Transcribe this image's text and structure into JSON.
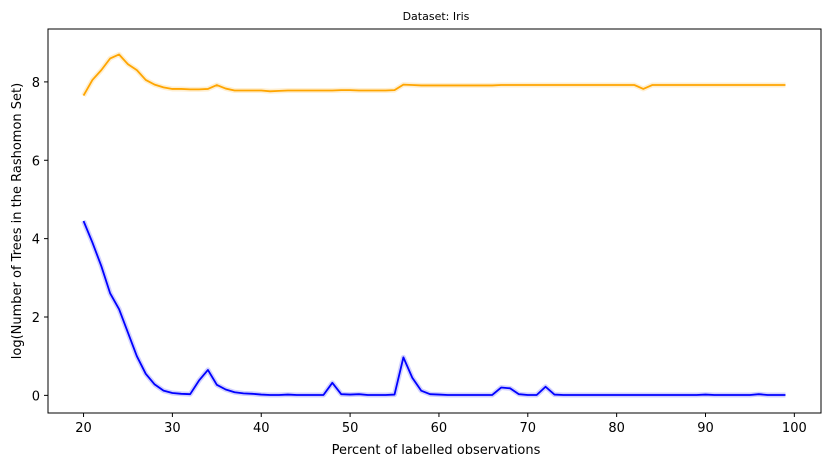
{
  "chart_data": {
    "type": "line",
    "title": "Dataset: Iris",
    "xlabel": "Percent of labelled observations",
    "ylabel": "log(Number of Trees in the Rashomon Set)",
    "xlim": [
      16,
      103
    ],
    "ylim": [
      -0.45,
      9.35
    ],
    "xticks": [
      20,
      30,
      40,
      50,
      60,
      70,
      80,
      90,
      100
    ],
    "yticks": [
      0,
      2,
      4,
      6,
      8
    ],
    "grid": false,
    "legend": "none",
    "series": [
      {
        "color": "#ffa500",
        "x": [
          20,
          21,
          22,
          23,
          24,
          25,
          26,
          27,
          28,
          29,
          30,
          31,
          32,
          33,
          34,
          35,
          36,
          37,
          38,
          39,
          40,
          41,
          42,
          43,
          44,
          45,
          46,
          47,
          48,
          49,
          50,
          51,
          52,
          53,
          54,
          55,
          56,
          57,
          58,
          59,
          60,
          61,
          62,
          63,
          64,
          65,
          66,
          67,
          68,
          69,
          70,
          71,
          72,
          73,
          74,
          75,
          76,
          77,
          78,
          79,
          80,
          81,
          82,
          83,
          84,
          85,
          86,
          87,
          88,
          89,
          90,
          91,
          92,
          93,
          94,
          95,
          96,
          97,
          98,
          99
        ],
        "values": [
          7.65,
          8.05,
          8.3,
          8.6,
          8.7,
          8.45,
          8.3,
          8.05,
          7.93,
          7.86,
          7.82,
          7.82,
          7.81,
          7.81,
          7.82,
          7.92,
          7.83,
          7.78,
          7.78,
          7.78,
          7.78,
          7.76,
          7.77,
          7.78,
          7.78,
          7.78,
          7.78,
          7.78,
          7.78,
          7.79,
          7.79,
          7.78,
          7.78,
          7.78,
          7.78,
          7.79,
          7.93,
          7.92,
          7.91,
          7.91,
          7.91,
          7.91,
          7.91,
          7.91,
          7.91,
          7.91,
          7.91,
          7.92,
          7.92,
          7.92,
          7.92,
          7.92,
          7.92,
          7.92,
          7.92,
          7.92,
          7.92,
          7.92,
          7.92,
          7.92,
          7.92,
          7.92,
          7.92,
          7.82,
          7.92,
          7.92,
          7.92,
          7.92,
          7.92,
          7.92,
          7.92,
          7.92,
          7.92,
          7.92,
          7.92,
          7.92,
          7.92,
          7.92,
          7.92,
          7.92
        ]
      },
      {
        "color": "#0000ff",
        "x": [
          20,
          21,
          22,
          23,
          24,
          25,
          26,
          27,
          28,
          29,
          30,
          31,
          32,
          33,
          34,
          35,
          36,
          37,
          38,
          39,
          40,
          41,
          42,
          43,
          44,
          45,
          46,
          47,
          48,
          49,
          50,
          51,
          52,
          53,
          54,
          55,
          56,
          57,
          58,
          59,
          60,
          61,
          62,
          63,
          64,
          65,
          66,
          67,
          68,
          69,
          70,
          71,
          72,
          73,
          74,
          75,
          76,
          77,
          78,
          79,
          80,
          81,
          82,
          83,
          84,
          85,
          86,
          87,
          88,
          89,
          90,
          91,
          92,
          93,
          94,
          95,
          96,
          97,
          98,
          99
        ],
        "values": [
          4.45,
          3.9,
          3.3,
          2.6,
          2.2,
          1.6,
          1.0,
          0.55,
          0.28,
          0.12,
          0.06,
          0.04,
          0.03,
          0.38,
          0.65,
          0.27,
          0.15,
          0.08,
          0.05,
          0.04,
          0.02,
          0.01,
          0.01,
          0.02,
          0.01,
          0.01,
          0.01,
          0.01,
          0.32,
          0.03,
          0.02,
          0.03,
          0.01,
          0.01,
          0.01,
          0.02,
          0.97,
          0.45,
          0.12,
          0.03,
          0.02,
          0.01,
          0.01,
          0.01,
          0.01,
          0.01,
          0.01,
          0.2,
          0.18,
          0.03,
          0.01,
          0.01,
          0.22,
          0.02,
          0.01,
          0.01,
          0.01,
          0.01,
          0.01,
          0.01,
          0.01,
          0.01,
          0.01,
          0.01,
          0.01,
          0.01,
          0.01,
          0.01,
          0.01,
          0.01,
          0.02,
          0.01,
          0.01,
          0.01,
          0.01,
          0.01,
          0.03,
          0.01,
          0.01,
          0.01
        ]
      }
    ]
  }
}
